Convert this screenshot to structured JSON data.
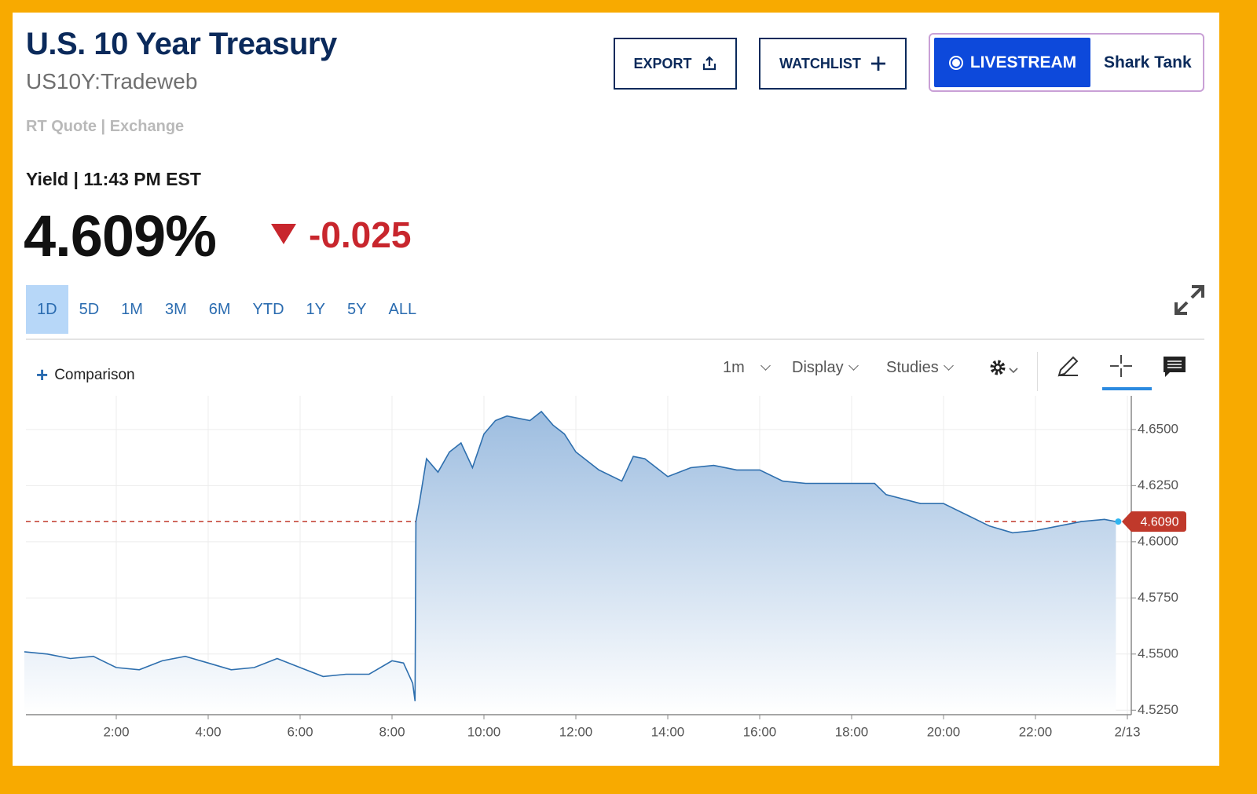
{
  "header": {
    "title": "U.S. 10 Year Treasury",
    "symbol": "US10Y:Tradeweb",
    "quote_source": "RT Quote | Exchange"
  },
  "buttons": {
    "export": "EXPORT",
    "watchlist": "WATCHLIST",
    "livestream": "LIVESTREAM",
    "shark_tank": "Shark Tank"
  },
  "quote": {
    "label": "Yield | 11:43 PM EST",
    "price": "4.609%",
    "change": "-0.025"
  },
  "ranges": [
    "1D",
    "5D",
    "1M",
    "3M",
    "6M",
    "YTD",
    "1Y",
    "5Y",
    "ALL"
  ],
  "toolbar": {
    "comparison": "Comparison",
    "interval": "1m",
    "display": "Display",
    "studies": "Studies"
  },
  "chart_data": {
    "type": "area",
    "x": [
      0,
      0.5,
      1,
      1.5,
      2,
      2.5,
      3,
      3.5,
      4,
      4.5,
      5,
      5.5,
      6,
      6.5,
      7,
      7.5,
      8,
      8.25,
      8.45,
      8.5,
      8.52,
      8.6,
      8.75,
      9,
      9.25,
      9.5,
      9.75,
      10,
      10.25,
      10.5,
      11,
      11.25,
      11.5,
      11.75,
      12,
      12.5,
      13,
      13.25,
      13.5,
      14,
      14.5,
      15,
      15.5,
      16,
      16.5,
      17,
      18,
      18.5,
      18.75,
      19.5,
      20,
      20.5,
      21,
      21.5,
      22,
      22.5,
      23,
      23.5,
      23.75
    ],
    "values": [
      4.551,
      4.55,
      4.548,
      4.549,
      4.544,
      4.543,
      4.547,
      4.549,
      4.546,
      4.543,
      4.544,
      4.548,
      4.544,
      4.54,
      4.541,
      4.541,
      4.547,
      4.546,
      4.537,
      4.529,
      4.609,
      4.618,
      4.637,
      4.631,
      4.64,
      4.644,
      4.633,
      4.648,
      4.654,
      4.656,
      4.654,
      4.658,
      4.652,
      4.648,
      4.64,
      4.632,
      4.627,
      4.638,
      4.637,
      4.629,
      4.633,
      4.634,
      4.632,
      4.632,
      4.627,
      4.626,
      4.626,
      4.626,
      4.621,
      4.617,
      4.617,
      4.612,
      4.607,
      4.604,
      4.605,
      4.607,
      4.609,
      4.61,
      4.609
    ],
    "color": "#2e6fae",
    "last_value": {
      "value": 4.609,
      "label": "4.6090"
    },
    "last_color": "#c0392b",
    "xlim": [
      0,
      24
    ],
    "xticks": [
      {
        "value": 2,
        "label": "2:00"
      },
      {
        "value": 4,
        "label": "4:00"
      },
      {
        "value": 6,
        "label": "6:00"
      },
      {
        "value": 8,
        "label": "8:00"
      },
      {
        "value": 10,
        "label": "10:00"
      },
      {
        "value": 12,
        "label": "12:00"
      },
      {
        "value": 14,
        "label": "14:00"
      },
      {
        "value": 16,
        "label": "16:00"
      },
      {
        "value": 18,
        "label": "18:00"
      },
      {
        "value": 20,
        "label": "20:00"
      },
      {
        "value": 22,
        "label": "22:00"
      },
      {
        "value": 24,
        "label": "2/13"
      }
    ],
    "ylim": [
      4.523,
      4.665
    ],
    "yticks": [
      {
        "value": 4.525,
        "label": "4.5250"
      },
      {
        "value": 4.55,
        "label": "4.5500"
      },
      {
        "value": 4.575,
        "label": "4.5750"
      },
      {
        "value": 4.6,
        "label": "4.6000"
      },
      {
        "value": 4.625,
        "label": "4.6250"
      },
      {
        "value": 4.65,
        "label": "4.6500"
      }
    ],
    "grid": true
  }
}
